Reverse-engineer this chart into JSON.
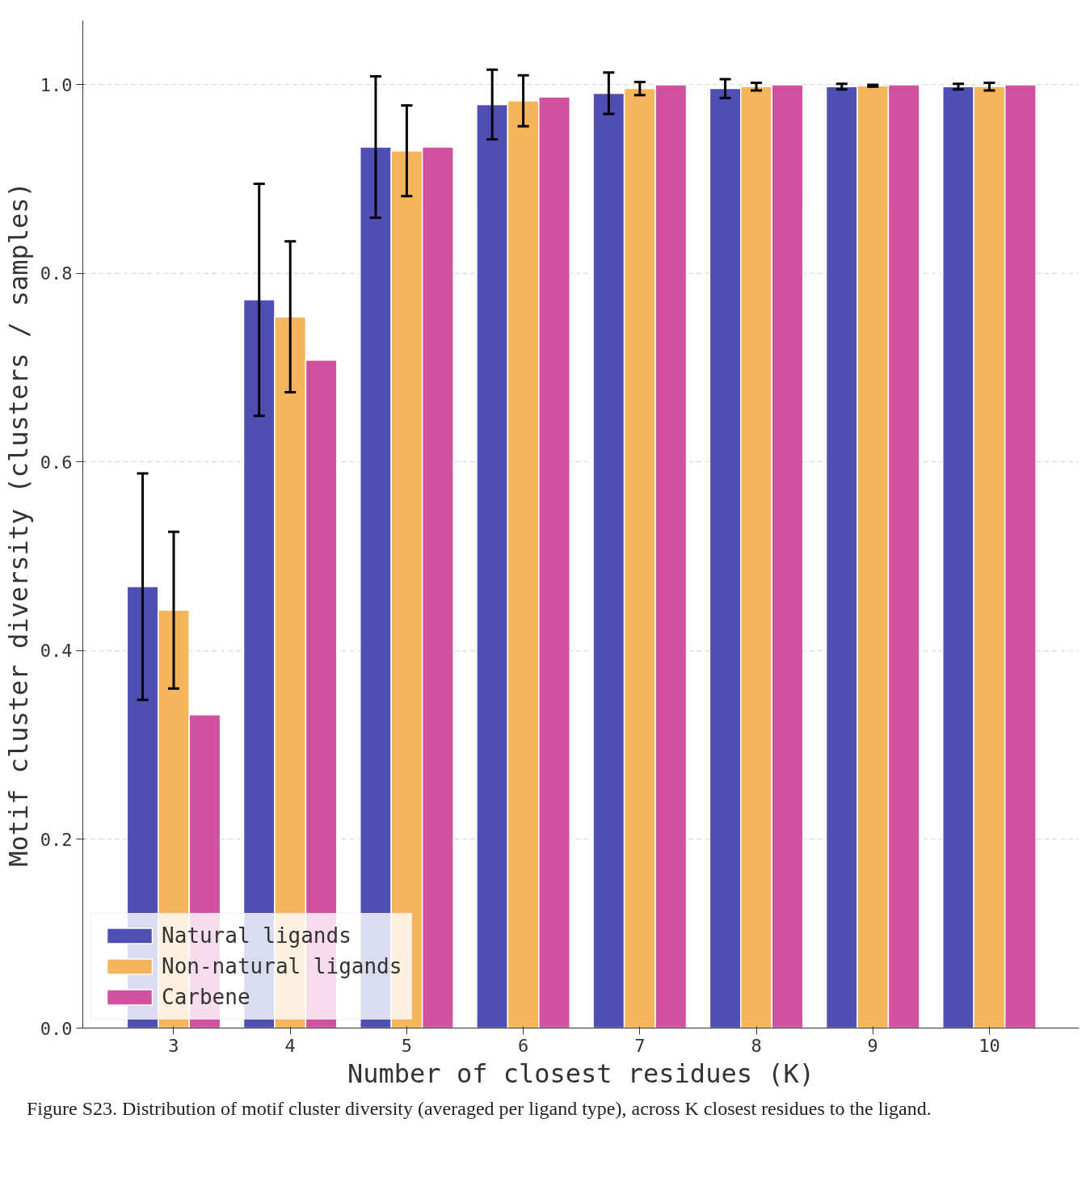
{
  "chart_data": {
    "type": "bar",
    "xlabel": "Number of closest residues (K)",
    "ylabel": "Motif cluster diversity (clusters / samples)",
    "categories": [
      "3",
      "4",
      "5",
      "6",
      "7",
      "8",
      "9",
      "10"
    ],
    "series": [
      {
        "name": "Natural ligands",
        "color": "#4f4fb3",
        "values": [
          0.468,
          0.772,
          0.934,
          0.979,
          0.991,
          0.996,
          0.998,
          0.998
        ],
        "errors": [
          0.12,
          0.123,
          0.075,
          0.037,
          0.022,
          0.01,
          0.003,
          0.003
        ]
      },
      {
        "name": "Non-natural ligands",
        "color": "#f6b55a",
        "values": [
          0.443,
          0.754,
          0.93,
          0.983,
          0.996,
          0.998,
          0.999,
          0.998
        ],
        "errors": [
          0.083,
          0.08,
          0.048,
          0.027,
          0.007,
          0.004,
          0.001,
          0.004
        ]
      },
      {
        "name": "Carbene",
        "color": "#cf519f",
        "values": [
          0.332,
          0.708,
          0.934,
          0.987,
          1.0,
          1.0,
          1.0,
          1.0
        ]
      }
    ],
    "ylim": [
      0,
      1.068
    ],
    "yticks": [
      {
        "value": 0,
        "label": "0.0"
      },
      {
        "value": 0.2,
        "label": "0.2"
      },
      {
        "value": 0.4,
        "label": "0.4"
      },
      {
        "value": 0.6,
        "label": "0.6"
      },
      {
        "value": 0.8,
        "label": "0.8"
      },
      {
        "value": 1.0,
        "label": "1.0"
      }
    ],
    "grid": "y",
    "legend": "bottom left",
    "annotations": [
      "Figure S23. Distribution of motif cluster diversity (averaged per ligand type), across K closest residues to the ligand."
    ]
  }
}
